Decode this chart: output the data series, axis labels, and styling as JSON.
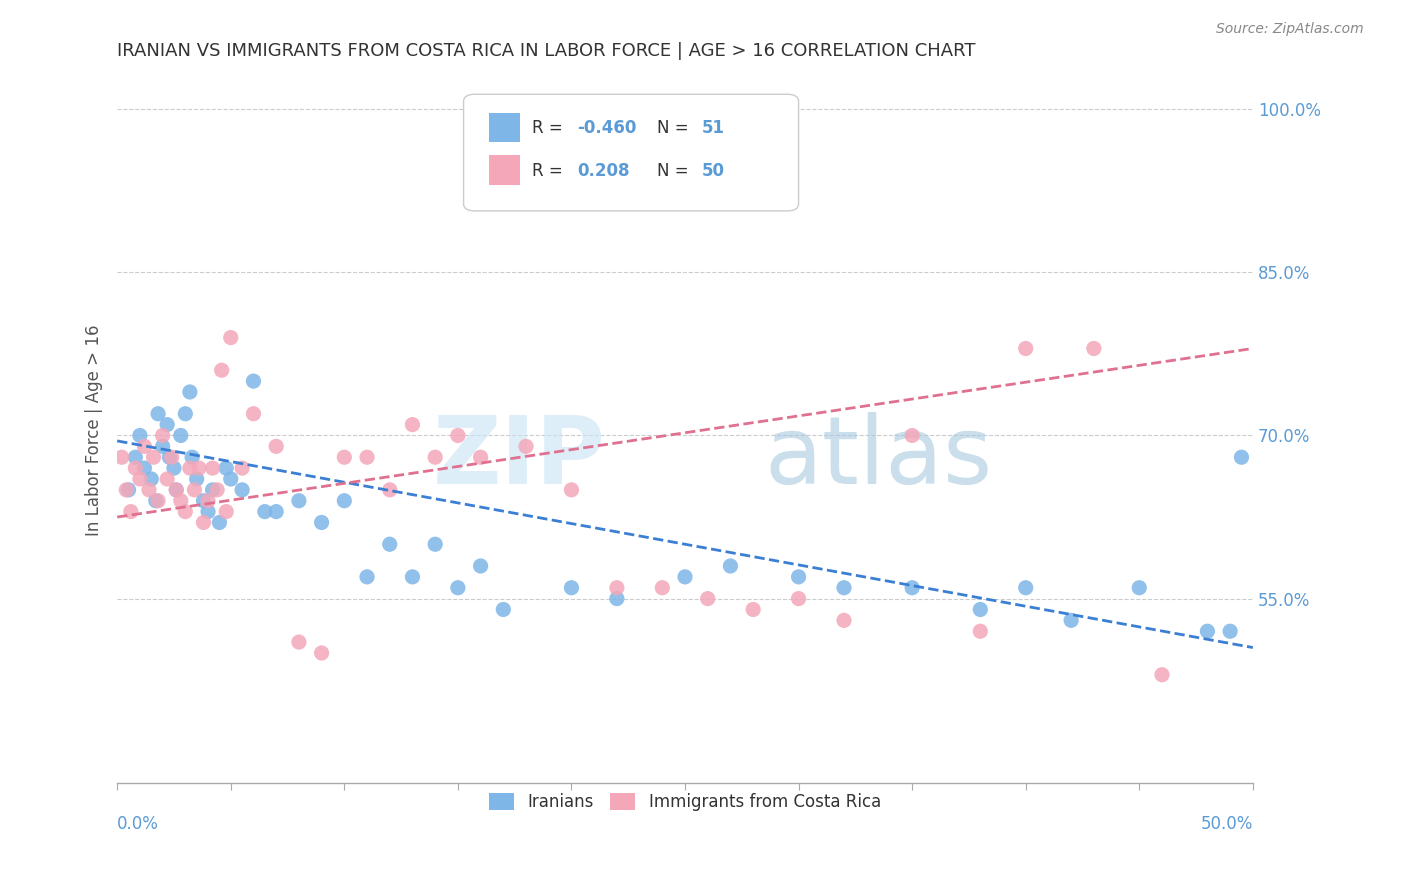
{
  "title": "IRANIAN VS IMMIGRANTS FROM COSTA RICA IN LABOR FORCE | AGE > 16 CORRELATION CHART",
  "source": "Source: ZipAtlas.com",
  "ylabel": "In Labor Force | Age > 16",
  "ytick_labels": [
    "55.0%",
    "70.0%",
    "85.0%",
    "100.0%"
  ],
  "ytick_values": [
    0.55,
    0.7,
    0.85,
    1.0
  ],
  "legend_label1": "Iranians",
  "legend_label2": "Immigrants from Costa Rica",
  "color_blue": "#7EB6E8",
  "color_pink": "#F4A7B9",
  "color_blue_line": "#3B7FD4",
  "color_pink_line": "#E07090",
  "color_axis": "#AAAAAA",
  "color_grid": "#CCCCCC",
  "color_text_blue": "#5B9BD5",
  "color_title": "#333333",
  "xmin": 0.0,
  "xmax": 0.5,
  "ymin": 0.38,
  "ymax": 1.03,
  "blue_scatter_x": [
    0.005,
    0.008,
    0.01,
    0.012,
    0.015,
    0.017,
    0.018,
    0.02,
    0.022,
    0.023,
    0.025,
    0.026,
    0.028,
    0.03,
    0.032,
    0.033,
    0.035,
    0.038,
    0.04,
    0.042,
    0.045,
    0.048,
    0.05,
    0.055,
    0.06,
    0.065,
    0.07,
    0.08,
    0.09,
    0.1,
    0.11,
    0.12,
    0.13,
    0.14,
    0.15,
    0.16,
    0.17,
    0.2,
    0.22,
    0.25,
    0.27,
    0.3,
    0.32,
    0.35,
    0.38,
    0.4,
    0.42,
    0.45,
    0.48,
    0.49,
    0.495
  ],
  "blue_scatter_y": [
    0.65,
    0.68,
    0.7,
    0.67,
    0.66,
    0.64,
    0.72,
    0.69,
    0.71,
    0.68,
    0.67,
    0.65,
    0.7,
    0.72,
    0.74,
    0.68,
    0.66,
    0.64,
    0.63,
    0.65,
    0.62,
    0.67,
    0.66,
    0.65,
    0.75,
    0.63,
    0.63,
    0.64,
    0.62,
    0.64,
    0.57,
    0.6,
    0.57,
    0.6,
    0.56,
    0.58,
    0.54,
    0.56,
    0.55,
    0.57,
    0.58,
    0.57,
    0.56,
    0.56,
    0.54,
    0.56,
    0.53,
    0.56,
    0.52,
    0.52,
    0.68
  ],
  "pink_scatter_x": [
    0.002,
    0.004,
    0.006,
    0.008,
    0.01,
    0.012,
    0.014,
    0.016,
    0.018,
    0.02,
    0.022,
    0.024,
    0.026,
    0.028,
    0.03,
    0.032,
    0.034,
    0.036,
    0.038,
    0.04,
    0.042,
    0.044,
    0.046,
    0.048,
    0.05,
    0.055,
    0.06,
    0.07,
    0.08,
    0.09,
    0.1,
    0.11,
    0.12,
    0.13,
    0.14,
    0.15,
    0.16,
    0.18,
    0.2,
    0.22,
    0.24,
    0.26,
    0.28,
    0.3,
    0.32,
    0.35,
    0.38,
    0.4,
    0.43,
    0.46
  ],
  "pink_scatter_y": [
    0.68,
    0.65,
    0.63,
    0.67,
    0.66,
    0.69,
    0.65,
    0.68,
    0.64,
    0.7,
    0.66,
    0.68,
    0.65,
    0.64,
    0.63,
    0.67,
    0.65,
    0.67,
    0.62,
    0.64,
    0.67,
    0.65,
    0.76,
    0.63,
    0.79,
    0.67,
    0.72,
    0.69,
    0.51,
    0.5,
    0.68,
    0.68,
    0.65,
    0.71,
    0.68,
    0.7,
    0.68,
    0.69,
    0.65,
    0.56,
    0.56,
    0.55,
    0.54,
    0.55,
    0.53,
    0.7,
    0.52,
    0.78,
    0.78,
    0.48
  ],
  "blue_line_x": [
    0.0,
    0.5
  ],
  "blue_line_y": [
    0.695,
    0.505
  ],
  "pink_line_x": [
    0.0,
    0.5
  ],
  "pink_line_y": [
    0.625,
    0.78
  ]
}
